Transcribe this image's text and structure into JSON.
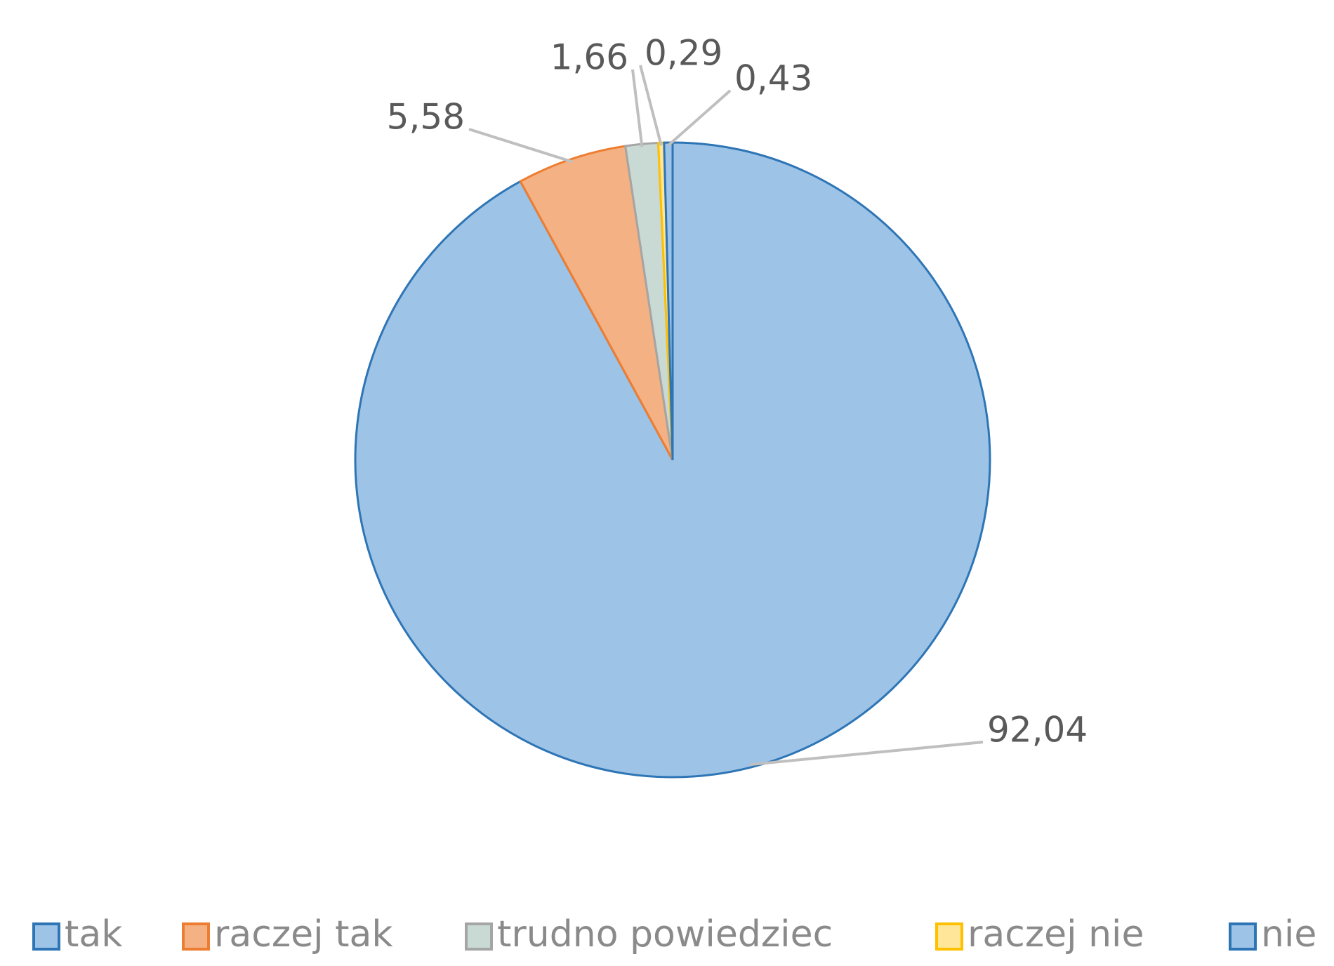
{
  "chart_data": {
    "type": "pie",
    "categories": [
      "tak",
      "raczej tak",
      "trudno powiedziec",
      "raczej nie",
      "nie"
    ],
    "values": [
      92.04,
      5.58,
      1.66,
      0.29,
      0.43
    ],
    "value_labels": [
      "92,04",
      "5,58",
      "1,66",
      "0,29",
      "0,43"
    ],
    "colors": [
      "#9dc3e6",
      "#f4b183",
      "#c9d9d3",
      "#ffe699",
      "#9dc3e6"
    ],
    "legend": "bottom"
  }
}
